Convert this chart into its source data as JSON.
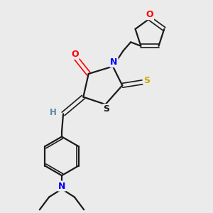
{
  "background_color": "#ebebeb",
  "bond_color": "#1a1a1a",
  "atom_colors": {
    "O": "#ff0000",
    "N": "#0000ff",
    "S_exo": "#ccaa00",
    "S_ring": "#1a1a1a",
    "H": "#5588aa",
    "C": "#1a1a1a"
  },
  "figsize": [
    3.0,
    3.0
  ],
  "dpi": 100
}
